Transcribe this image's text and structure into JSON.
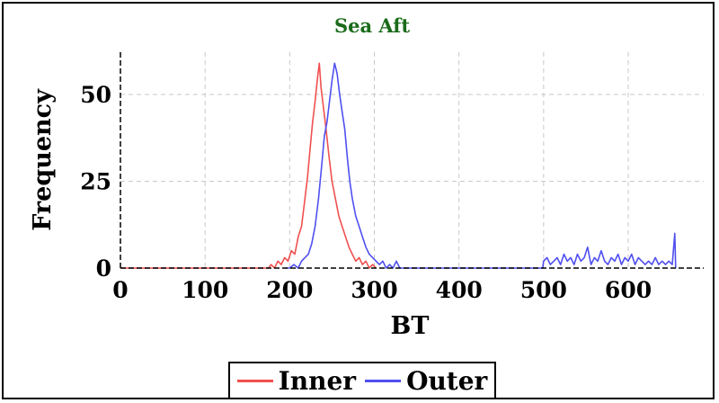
{
  "chart_data": {
    "type": "line",
    "title": "Sea Aft",
    "xlabel": "BT",
    "ylabel": "Frequency",
    "xlim": [
      0,
      690
    ],
    "ylim": [
      0,
      62
    ],
    "xticks": [
      0,
      100,
      200,
      300,
      400,
      500,
      600
    ],
    "yticks": [
      0,
      25,
      50
    ],
    "grid": true,
    "legend_placement": "bottom-center",
    "series": [
      {
        "name": "Inner",
        "color": "#f05050",
        "points": [
          [
            0,
            0
          ],
          [
            175,
            0
          ],
          [
            178,
            1
          ],
          [
            182,
            0
          ],
          [
            186,
            2
          ],
          [
            190,
            1
          ],
          [
            194,
            3
          ],
          [
            198,
            2
          ],
          [
            202,
            5
          ],
          [
            206,
            4
          ],
          [
            210,
            9
          ],
          [
            214,
            12
          ],
          [
            218,
            20
          ],
          [
            221,
            26
          ],
          [
            224,
            34
          ],
          [
            227,
            42
          ],
          [
            230,
            48
          ],
          [
            233,
            55
          ],
          [
            235,
            59
          ],
          [
            237,
            52
          ],
          [
            240,
            46
          ],
          [
            243,
            40
          ],
          [
            246,
            33
          ],
          [
            250,
            25
          ],
          [
            254,
            20
          ],
          [
            258,
            15
          ],
          [
            262,
            12
          ],
          [
            266,
            9
          ],
          [
            270,
            6
          ],
          [
            274,
            4
          ],
          [
            278,
            2
          ],
          [
            282,
            3
          ],
          [
            286,
            1
          ],
          [
            290,
            2
          ],
          [
            294,
            0
          ],
          [
            298,
            1
          ],
          [
            302,
            0
          ]
        ]
      },
      {
        "name": "Outer",
        "color": "#5050f0",
        "points": [
          [
            195,
            0
          ],
          [
            200,
            0
          ],
          [
            205,
            1
          ],
          [
            210,
            0
          ],
          [
            214,
            2
          ],
          [
            218,
            3
          ],
          [
            222,
            4
          ],
          [
            226,
            7
          ],
          [
            230,
            12
          ],
          [
            234,
            20
          ],
          [
            238,
            30
          ],
          [
            241,
            38
          ],
          [
            244,
            42
          ],
          [
            247,
            48
          ],
          [
            250,
            54
          ],
          [
            253,
            59
          ],
          [
            256,
            56
          ],
          [
            259,
            50
          ],
          [
            262,
            45
          ],
          [
            265,
            40
          ],
          [
            268,
            32
          ],
          [
            271,
            25
          ],
          [
            274,
            20
          ],
          [
            278,
            15
          ],
          [
            282,
            12
          ],
          [
            286,
            9
          ],
          [
            290,
            6
          ],
          [
            294,
            4
          ],
          [
            298,
            3
          ],
          [
            302,
            2
          ],
          [
            306,
            1
          ],
          [
            310,
            2
          ],
          [
            314,
            0
          ],
          [
            318,
            1
          ],
          [
            322,
            0
          ],
          [
            326,
            2
          ],
          [
            330,
            0
          ],
          [
            400,
            0
          ],
          [
            499,
            0
          ],
          [
            500,
            2
          ],
          [
            504,
            3
          ],
          [
            508,
            1
          ],
          [
            512,
            2
          ],
          [
            516,
            3
          ],
          [
            520,
            1
          ],
          [
            524,
            4
          ],
          [
            528,
            2
          ],
          [
            532,
            3
          ],
          [
            536,
            1
          ],
          [
            540,
            4
          ],
          [
            544,
            2
          ],
          [
            548,
            3
          ],
          [
            552,
            6
          ],
          [
            556,
            1
          ],
          [
            560,
            3
          ],
          [
            564,
            2
          ],
          [
            568,
            5
          ],
          [
            572,
            2
          ],
          [
            576,
            1
          ],
          [
            580,
            3
          ],
          [
            584,
            2
          ],
          [
            588,
            4
          ],
          [
            592,
            1
          ],
          [
            596,
            3
          ],
          [
            600,
            2
          ],
          [
            604,
            4
          ],
          [
            608,
            1
          ],
          [
            612,
            3
          ],
          [
            616,
            2
          ],
          [
            620,
            1
          ],
          [
            624,
            2
          ],
          [
            628,
            1
          ],
          [
            632,
            3
          ],
          [
            636,
            1
          ],
          [
            640,
            2
          ],
          [
            644,
            1
          ],
          [
            648,
            2
          ],
          [
            652,
            1
          ],
          [
            655,
            10
          ],
          [
            656,
            0
          ]
        ]
      }
    ],
    "legend": [
      "Inner",
      "Outer"
    ]
  }
}
